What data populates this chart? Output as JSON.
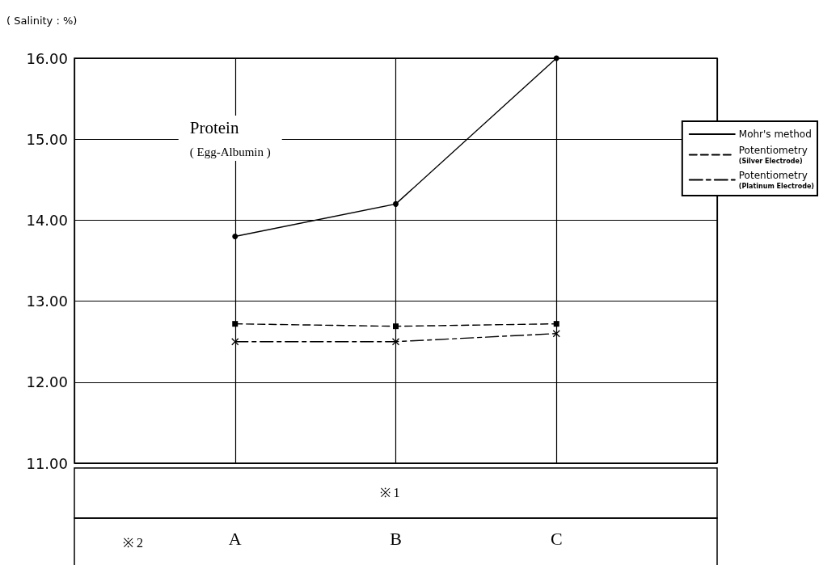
{
  "chart_data": {
    "type": "line",
    "title": "Protein",
    "subtitle": "( Egg-Albumin )",
    "ylabel": "( Salinity : %)",
    "categories": [
      "A",
      "B",
      "C"
    ],
    "series": [
      {
        "name": "Mohr's method",
        "color": "#000000",
        "values": [
          13.8,
          14.2,
          16.0
        ],
        "marker": "circle",
        "line_style": "solid"
      },
      {
        "name": "Potentiometry (Silver Electrode)",
        "color": "#000000",
        "values": [
          12.72,
          12.69,
          12.72
        ],
        "marker": "square",
        "line_style": "dashed"
      },
      {
        "name": "Potentiometry (Platinum Electrode)",
        "color": "#000000",
        "values": [
          12.5,
          12.5,
          12.6
        ],
        "marker": "cross",
        "line_style": "dashdot"
      }
    ],
    "ylim": [
      11,
      16
    ],
    "yticks": [
      {
        "value": 11,
        "label": "11.00"
      },
      {
        "value": 12,
        "label": "12.00"
      },
      {
        "value": 13,
        "label": "13.00"
      },
      {
        "value": 14,
        "label": "14.00"
      },
      {
        "value": 15,
        "label": "15.00"
      },
      {
        "value": 16,
        "label": "16.00"
      }
    ],
    "grid": true,
    "legend": "top right",
    "annotations": [
      "※ 1",
      "※ 2"
    ]
  }
}
